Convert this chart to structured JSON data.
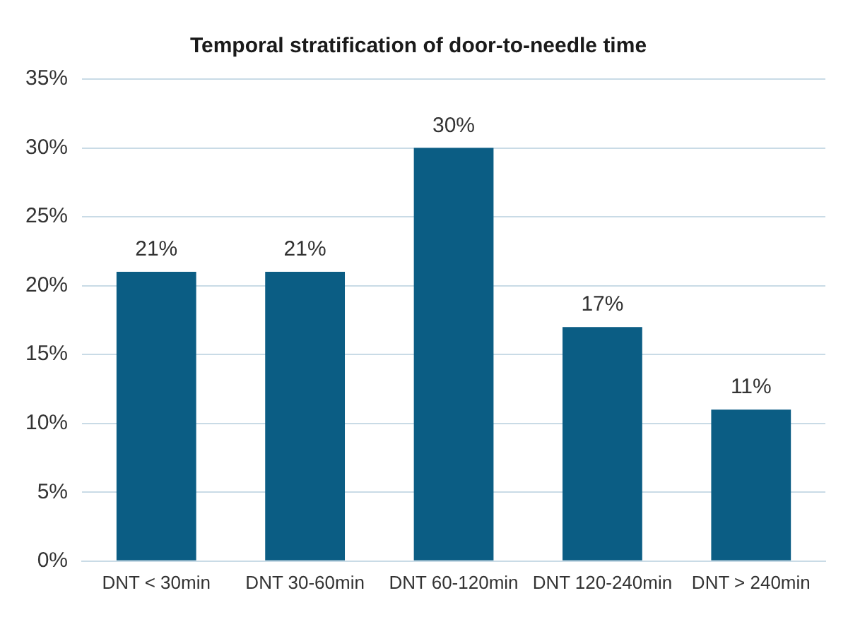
{
  "chart_data": {
    "type": "bar",
    "title": "Temporal stratification of door-to-needle time",
    "categories": [
      "DNT < 30min",
      "DNT 30-60min",
      "DNT 60-120min",
      "DNT 120-240min",
      "DNT > 240min"
    ],
    "values": [
      21,
      21,
      30,
      17,
      11
    ],
    "color": "#0b5d84",
    "value_labels": [
      "21%",
      "21%",
      "30%",
      "17%",
      "11%"
    ],
    "ylim": [
      0,
      35
    ],
    "yticks": [
      {
        "value": 0,
        "label": "0%"
      },
      {
        "value": 5,
        "label": "5%"
      },
      {
        "value": 10,
        "label": "10%"
      },
      {
        "value": 15,
        "label": "15%"
      },
      {
        "value": 20,
        "label": "20%"
      },
      {
        "value": 25,
        "label": "25%"
      },
      {
        "value": 30,
        "label": "30%"
      },
      {
        "value": 35,
        "label": "35%"
      }
    ],
    "grid": "y",
    "legend": false
  }
}
